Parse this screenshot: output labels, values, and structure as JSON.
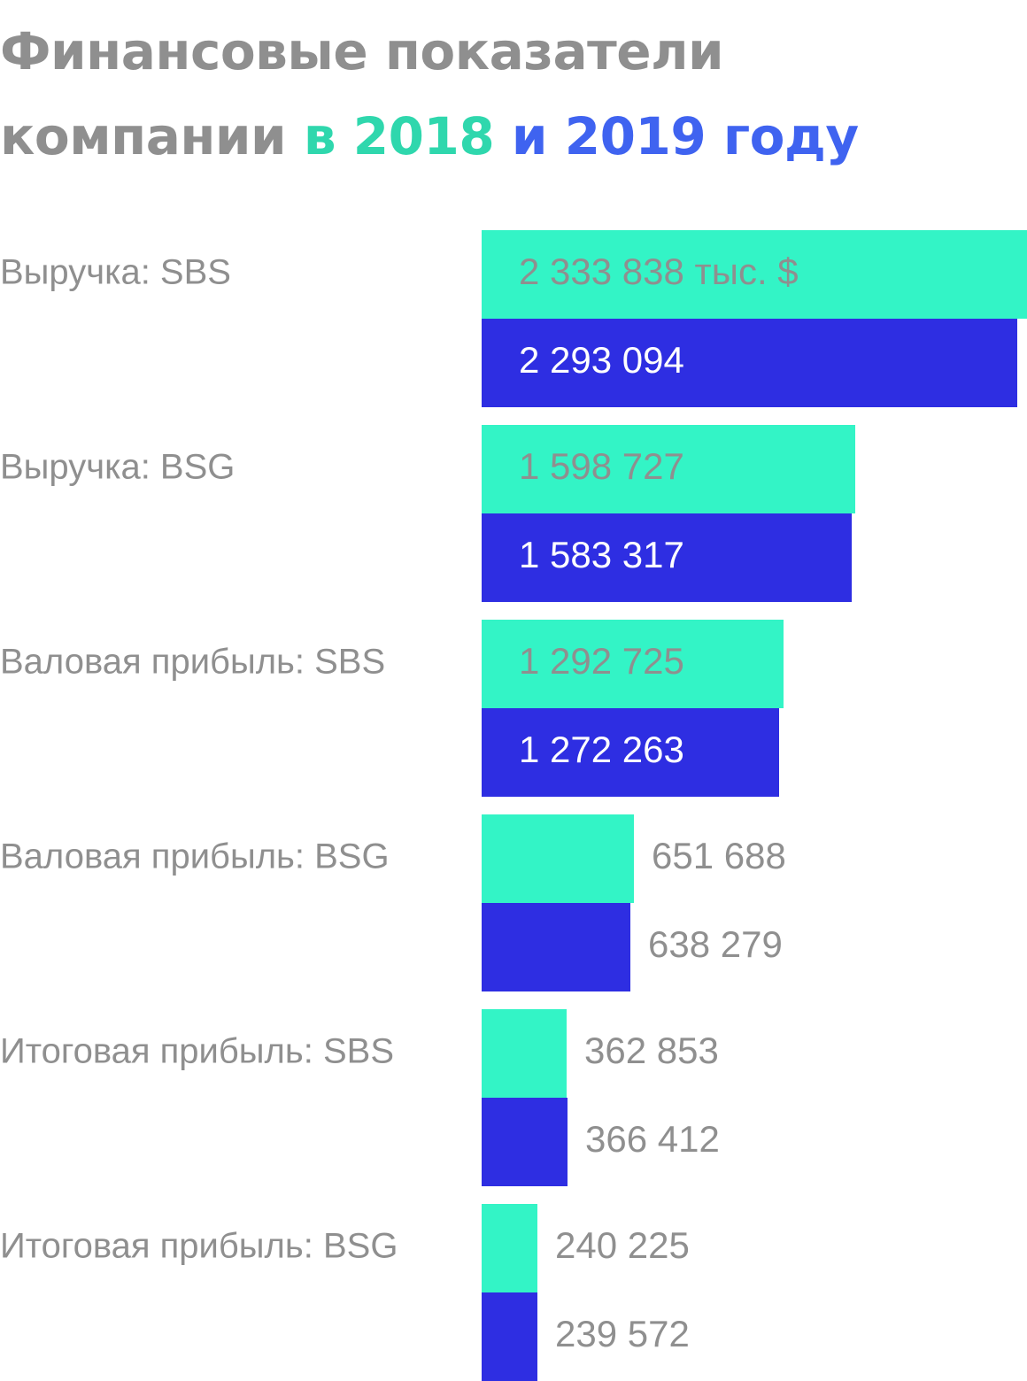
{
  "title": {
    "line1": "Финансовые показатели",
    "line2_prefix": "компании",
    "line2_y2018": "в 2018",
    "line2_and": "и 2019 году"
  },
  "colors": {
    "bar_2018": "#33f4c6",
    "bar_2019": "#2e2ee2",
    "text_gray": "#8f8f8f",
    "text_on_2019": "#ffffff",
    "title_2018": "#2fd7ad",
    "title_2019": "#3f63f0"
  },
  "chart_data": {
    "type": "bar",
    "orientation": "horizontal",
    "title": "Финансовые показатели компании в 2018 и 2019 году",
    "xlabel": "",
    "ylabel": "",
    "unit": "тыс. $",
    "grid": false,
    "legend": "none",
    "xlim": [
      0,
      2333838
    ],
    "categories": [
      "Выручка: SBS",
      "Выручка: BSG",
      "Валовая прибыль: SBS",
      "Валовая прибыль: BSG",
      "Итоговая прибыль: SBS",
      "Итоговая прибыль: BSG"
    ],
    "series": [
      {
        "values": [
          2333838,
          1598727,
          1292725,
          651688,
          362853,
          240225
        ],
        "labels": [
          "2 333 838 тыс. $",
          "1 598 727",
          "1 292 725",
          "651 688",
          "362 853",
          "240 225"
        ]
      },
      {
        "values": [
          2293094,
          1583317,
          1272263,
          638279,
          366412,
          239572
        ],
        "labels": [
          "2 293 094",
          "1 583 317",
          "1 272 263",
          "638 279",
          "366 412",
          "239 572"
        ]
      }
    ]
  }
}
